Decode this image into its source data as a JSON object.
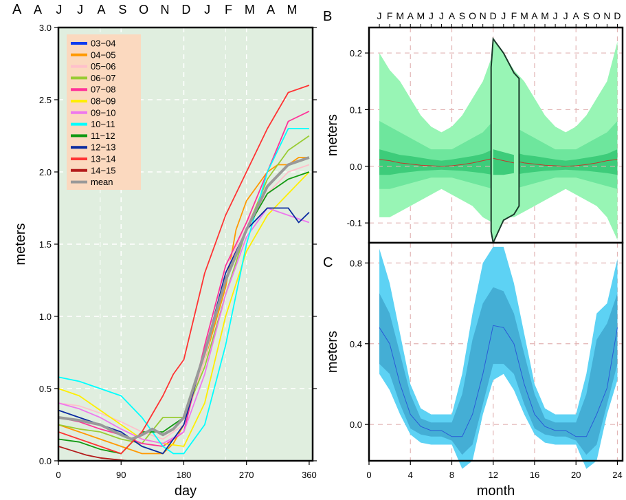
{
  "chart_data": [
    {
      "panel": "A",
      "type": "line",
      "xlabel": "day",
      "ylabel": "meters",
      "xlim": [
        0,
        365
      ],
      "ylim": [
        0,
        3.0
      ],
      "x_ticks": [
        0,
        90,
        180,
        270,
        360
      ],
      "y_ticks": [
        "0.0",
        "0.5",
        "1.0",
        "1.5",
        "2.0",
        "2.5",
        "3.0"
      ],
      "top_month_labels": [
        "A",
        "J",
        "J",
        "A",
        "S",
        "O",
        "N",
        "D",
        "J",
        "F",
        "M",
        "A",
        "M"
      ],
      "background": "#e0eedf",
      "grid": true,
      "legend_position": "top-left",
      "legend_background": "#fbd9bf",
      "series": [
        {
          "name": "03−04",
          "color": "#0b3cf0",
          "x": [],
          "y": []
        },
        {
          "name": "04−05",
          "color": "#ff9900",
          "x": [
            0,
            30,
            60,
            90,
            120,
            150,
            165,
            180,
            210,
            240,
            255,
            270,
            285,
            300,
            315,
            330,
            345,
            360
          ],
          "y": [
            0.25,
            0.2,
            0.15,
            0.1,
            0.05,
            0.05,
            0.12,
            0.25,
            0.7,
            1.2,
            1.6,
            1.8,
            1.9,
            2.0,
            2.05,
            2.05,
            2.1,
            2.1
          ]
        },
        {
          "name": "05−06",
          "color": "#ffc0cb",
          "x": [
            0,
            30,
            60,
            90,
            120,
            150,
            180,
            210,
            240,
            270,
            300,
            330,
            360
          ],
          "y": [
            0.4,
            0.38,
            0.33,
            0.27,
            0.2,
            0.15,
            0.25,
            0.7,
            1.3,
            1.65,
            1.85,
            2.0,
            2.05
          ]
        },
        {
          "name": "06−07",
          "color": "#99cc33",
          "x": [
            0,
            30,
            60,
            90,
            120,
            150,
            180,
            210,
            240,
            270,
            300,
            330,
            360
          ],
          "y": [
            0.25,
            0.22,
            0.2,
            0.15,
            0.12,
            0.3,
            0.3,
            0.65,
            1.15,
            1.6,
            1.95,
            2.15,
            2.25
          ]
        },
        {
          "name": "07−08",
          "color": "#ff3399",
          "x": [
            0,
            30,
            60,
            90,
            120,
            150,
            180,
            210,
            240,
            270,
            300,
            330,
            360
          ],
          "y": [
            0.3,
            0.27,
            0.22,
            0.18,
            0.12,
            0.1,
            0.2,
            0.8,
            1.35,
            1.65,
            2.0,
            2.35,
            2.42
          ]
        },
        {
          "name": "08−09",
          "color": "#ffee00",
          "x": [
            0,
            30,
            60,
            90,
            120,
            150,
            180,
            210,
            240,
            270,
            300,
            330,
            360
          ],
          "y": [
            0.5,
            0.45,
            0.35,
            0.25,
            0.15,
            0.12,
            0.1,
            0.4,
            1.0,
            1.45,
            1.7,
            1.85,
            2.0
          ]
        },
        {
          "name": "09−10",
          "color": "#ee77ee",
          "x": [
            0,
            30,
            60,
            90,
            120,
            150,
            180,
            210,
            240,
            270,
            300,
            330,
            360
          ],
          "y": [
            0.4,
            0.36,
            0.3,
            0.22,
            0.15,
            0.12,
            0.2,
            0.6,
            1.15,
            1.55,
            1.75,
            1.7,
            1.65
          ]
        },
        {
          "name": "10−11",
          "color": "#00ffff",
          "x": [
            0,
            30,
            60,
            90,
            120,
            150,
            165,
            180,
            210,
            240,
            270,
            300,
            330,
            360
          ],
          "y": [
            0.58,
            0.55,
            0.5,
            0.45,
            0.3,
            0.1,
            0.05,
            0.05,
            0.25,
            0.8,
            1.5,
            2.0,
            2.3,
            2.3
          ]
        },
        {
          "name": "11−12",
          "color": "#119911",
          "x": [
            0,
            30,
            60,
            90,
            120,
            150,
            180,
            210,
            240,
            270,
            300,
            330,
            360
          ],
          "y": [
            0.15,
            0.13,
            0.08,
            0.05,
            0.2,
            0.2,
            0.3,
            0.75,
            1.25,
            1.6,
            1.85,
            1.95,
            2.0
          ]
        },
        {
          "name": "12−13",
          "color": "#0a2aa0",
          "x": [
            0,
            30,
            60,
            90,
            120,
            150,
            165,
            180,
            210,
            240,
            270,
            300,
            330,
            345,
            360
          ],
          "y": [
            0.35,
            0.3,
            0.25,
            0.2,
            0.1,
            0.05,
            0.15,
            0.25,
            0.75,
            1.3,
            1.6,
            1.75,
            1.75,
            1.65,
            1.72
          ]
        },
        {
          "name": "13−14",
          "color": "#ff3333",
          "x": [
            0,
            30,
            60,
            90,
            120,
            150,
            165,
            180,
            195,
            210,
            240,
            270,
            300,
            330,
            360
          ],
          "y": [
            0.2,
            0.15,
            0.1,
            0.05,
            0.2,
            0.45,
            0.6,
            0.7,
            1.0,
            1.3,
            1.7,
            2.0,
            2.3,
            2.55,
            2.6
          ]
        },
        {
          "name": "14−15",
          "color": "#b31b1b",
          "x": [
            0,
            20,
            40,
            60,
            80,
            100,
            120
          ],
          "y": [
            0.1,
            0.07,
            0.04,
            0.02,
            0.01,
            0.0,
            0.0
          ]
        },
        {
          "name": "mean",
          "color": "#999999",
          "x": [
            0,
            30,
            60,
            90,
            105,
            120,
            135,
            150,
            165,
            180,
            210,
            240,
            270,
            300,
            330,
            360
          ],
          "y": [
            0.3,
            0.28,
            0.25,
            0.18,
            0.15,
            0.18,
            0.22,
            0.18,
            0.22,
            0.3,
            0.75,
            1.25,
            1.6,
            1.9,
            2.05,
            2.1
          ]
        }
      ]
    },
    {
      "panel": "B",
      "type": "area",
      "ylabel": "meters",
      "xlim": [
        0,
        24.5
      ],
      "ylim": [
        -0.135,
        0.245
      ],
      "y_ticks": [
        "-0.1",
        "0.0",
        "0.1",
        "0.2"
      ],
      "top_month_labels": [
        "J",
        "F",
        "M",
        "A",
        "M",
        "J",
        "J",
        "A",
        "S",
        "O",
        "N",
        "D",
        "J",
        "F",
        "M",
        "A",
        "M",
        "J",
        "J",
        "A",
        "S",
        "O",
        "N",
        "D"
      ],
      "months": [
        1,
        2,
        3,
        4,
        5,
        6,
        7,
        8,
        9,
        10,
        11,
        12,
        13,
        14,
        15,
        16,
        17,
        18,
        19,
        20,
        21,
        22,
        23,
        24
      ],
      "band_outer": {
        "color": "#98f5b5",
        "upper": [
          0.2,
          0.17,
          0.15,
          0.12,
          0.09,
          0.07,
          0.06,
          0.07,
          0.09,
          0.12,
          0.15,
          0.2,
          0.2,
          0.17,
          0.15,
          0.12,
          0.09,
          0.07,
          0.06,
          0.07,
          0.09,
          0.12,
          0.15,
          0.22
        ],
        "lower": [
          -0.09,
          -0.09,
          -0.08,
          -0.07,
          -0.06,
          -0.05,
          -0.04,
          -0.05,
          -0.06,
          -0.07,
          -0.09,
          -0.1,
          -0.09,
          -0.09,
          -0.08,
          -0.07,
          -0.06,
          -0.05,
          -0.04,
          -0.05,
          -0.06,
          -0.07,
          -0.09,
          -0.13
        ]
      },
      "band_middle": {
        "color": "#6ee69d",
        "upper": [
          0.08,
          0.07,
          0.06,
          0.05,
          0.04,
          0.03,
          0.03,
          0.03,
          0.04,
          0.05,
          0.06,
          0.08,
          0.08,
          0.07,
          0.06,
          0.05,
          0.04,
          0.03,
          0.03,
          0.03,
          0.04,
          0.05,
          0.06,
          0.08
        ],
        "lower": [
          -0.04,
          -0.04,
          -0.035,
          -0.03,
          -0.025,
          -0.02,
          -0.02,
          -0.02,
          -0.025,
          -0.03,
          -0.035,
          -0.04,
          -0.04,
          -0.04,
          -0.035,
          -0.03,
          -0.025,
          -0.02,
          -0.02,
          -0.02,
          -0.025,
          -0.03,
          -0.035,
          -0.04
        ]
      },
      "band_inner": {
        "color": "#3dcc7a",
        "upper": [
          0.03,
          0.025,
          0.02,
          0.018,
          0.015,
          0.012,
          0.01,
          0.012,
          0.015,
          0.018,
          0.022,
          0.03,
          0.03,
          0.025,
          0.02,
          0.018,
          0.015,
          0.012,
          0.01,
          0.012,
          0.015,
          0.018,
          0.022,
          0.03
        ],
        "lower": [
          -0.015,
          -0.015,
          -0.012,
          -0.01,
          -0.008,
          -0.007,
          -0.006,
          -0.007,
          -0.008,
          -0.01,
          -0.012,
          -0.015,
          -0.015,
          -0.015,
          -0.012,
          -0.01,
          -0.008,
          -0.007,
          -0.006,
          -0.007,
          -0.008,
          -0.01,
          -0.012,
          -0.015
        ]
      },
      "median": [
        0.012,
        0.01,
        0.006,
        0.004,
        0.002,
        0.001,
        0.0,
        0.001,
        0.003,
        0.006,
        0.01,
        0.014,
        0.014,
        0.01,
        0.006,
        0.004,
        0.002,
        0.001,
        0.0,
        0.001,
        0.003,
        0.006,
        0.01,
        0.012
      ],
      "highlight": {
        "x": [
          11.8,
          12,
          13,
          14,
          14.5,
          14.5,
          14,
          13,
          12,
          11.8
        ],
        "y": [
          0.175,
          0.225,
          0.2,
          0.165,
          0.155,
          -0.07,
          -0.085,
          -0.095,
          -0.135,
          -0.115
        ]
      },
      "grid": true
    },
    {
      "panel": "C",
      "type": "area",
      "xlabel": "month",
      "ylabel": "meters",
      "xlim": [
        0,
        24.5
      ],
      "ylim": [
        -0.18,
        0.9
      ],
      "x_ticks": [
        0,
        4,
        8,
        12,
        16,
        20,
        24
      ],
      "y_ticks": [
        "0.0",
        "0.4",
        "0.8"
      ],
      "months": [
        1,
        2,
        3,
        4,
        5,
        6,
        7,
        8,
        9,
        10,
        11,
        12,
        13,
        14,
        15,
        16,
        17,
        18,
        19,
        20,
        21,
        22,
        23,
        24
      ],
      "band_outer": {
        "color": "#5dd2f4",
        "upper": [
          0.87,
          0.7,
          0.45,
          0.2,
          0.08,
          0.05,
          0.05,
          0.05,
          0.25,
          0.55,
          0.8,
          0.88,
          0.88,
          0.7,
          0.45,
          0.2,
          0.08,
          0.05,
          0.05,
          0.05,
          0.25,
          0.55,
          0.6,
          0.82
        ],
        "lower": [
          0.25,
          0.17,
          0.05,
          -0.05,
          -0.09,
          -0.1,
          -0.1,
          -0.1,
          -0.22,
          -0.18,
          0.05,
          0.22,
          0.25,
          0.17,
          0.05,
          -0.05,
          -0.09,
          -0.1,
          -0.1,
          -0.1,
          -0.22,
          -0.18,
          0.05,
          0.22
        ]
      },
      "band_inner": {
        "color": "#44aed5",
        "upper": [
          0.65,
          0.55,
          0.35,
          0.15,
          0.03,
          0.01,
          0.01,
          0.01,
          0.15,
          0.42,
          0.6,
          0.68,
          0.66,
          0.55,
          0.35,
          0.15,
          0.03,
          0.01,
          0.01,
          0.01,
          0.15,
          0.42,
          0.5,
          0.65
        ],
        "lower": [
          0.3,
          0.25,
          0.1,
          -0.02,
          -0.05,
          -0.06,
          -0.06,
          -0.08,
          -0.15,
          -0.1,
          0.1,
          0.3,
          0.3,
          0.25,
          0.1,
          -0.02,
          -0.05,
          -0.06,
          -0.06,
          -0.08,
          -0.15,
          -0.1,
          0.1,
          0.3
        ]
      },
      "median": [
        0.48,
        0.4,
        0.2,
        0.05,
        -0.01,
        -0.03,
        -0.03,
        -0.06,
        -0.06,
        0.05,
        0.25,
        0.49,
        0.48,
        0.4,
        0.2,
        0.05,
        -0.01,
        -0.03,
        -0.03,
        -0.06,
        -0.06,
        0.05,
        0.18,
        0.48
      ],
      "grid": true
    }
  ],
  "panel_letters": [
    "A",
    "B",
    "C"
  ]
}
